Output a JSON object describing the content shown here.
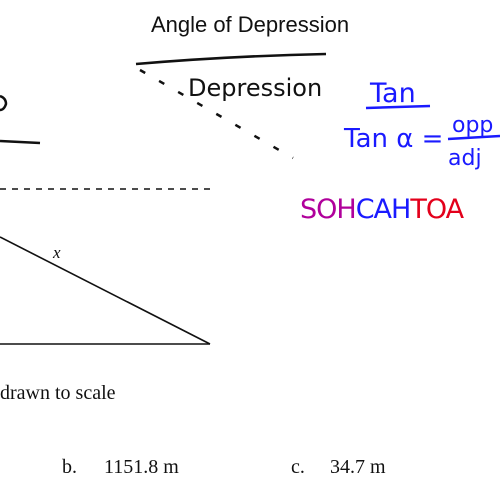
{
  "slide": {
    "title": "Angle of Depression",
    "colors": {
      "ink": "#111111",
      "blue": "#1a1aff",
      "magenta": "#b0009b",
      "red": "#e3001b"
    }
  },
  "annotations": {
    "depression_word": "Depression",
    "tan_heading": "Tan",
    "tan_formula_left": "Tan α =",
    "tan_numerator": "opp",
    "tan_denominator": "adj",
    "mnemonic": [
      {
        "text": "SOH",
        "color": "#b0009b"
      },
      {
        "text": "CAH",
        "color": "#1a1aff"
      },
      {
        "text": "TOA",
        "color": "#e3001b"
      }
    ]
  },
  "figure": {
    "hypotenuse_label": "x",
    "note": "drawn to scale"
  },
  "choices": [
    {
      "letter": "b.",
      "value": "1151.8 m"
    },
    {
      "letter": "c.",
      "value": "34.7 m"
    }
  ]
}
